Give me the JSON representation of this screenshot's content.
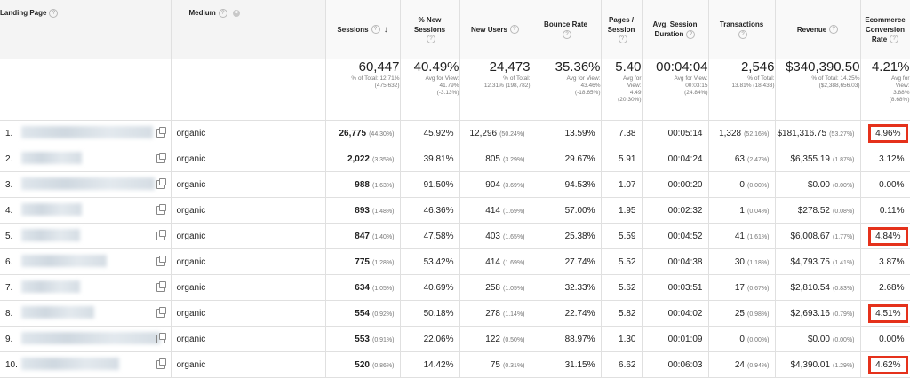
{
  "headers": {
    "landing_page": "Landing Page",
    "medium": "Medium",
    "sessions": "Sessions",
    "new_sessions_line1": "% New",
    "new_sessions_line2": "Sessions",
    "new_users": "New Users",
    "bounce_rate": "Bounce Rate",
    "pages_session_line1": "Pages /",
    "pages_session_line2": "Session",
    "avg_duration_line1": "Avg. Session",
    "avg_duration_line2": "Duration",
    "transactions": "Transactions",
    "revenue": "Revenue",
    "conv_line1": "Ecommerce",
    "conv_line2": "Conversion",
    "conv_line3": "Rate",
    "help_glyph": "?",
    "remove_glyph": "×",
    "sort_glyph": "↓"
  },
  "summary": {
    "sessions": {
      "big": "60,447",
      "sub1": "% of Total: 12.71%",
      "sub2": "(475,632)"
    },
    "new_sessions": {
      "big": "40.49%",
      "sub1": "Avg for View:",
      "sub2": "41.79%",
      "sub3": "(-3.13%)"
    },
    "new_users": {
      "big": "24,473",
      "sub1": "% of Total:",
      "sub2": "12.31% (198,782)"
    },
    "bounce_rate": {
      "big": "35.36%",
      "sub1": "Avg for View:",
      "sub2": "43.46%",
      "sub3": "(-18.65%)"
    },
    "pages_session": {
      "big": "5.40",
      "sub1": "Avg for",
      "sub2": "View:",
      "sub3": "4.49",
      "sub4": "(20.30%)"
    },
    "avg_duration": {
      "big": "00:04:04",
      "sub1": "Avg for View:",
      "sub2": "00:03:15",
      "sub3": "(24.84%)"
    },
    "transactions": {
      "big": "2,546",
      "sub1": "% of Total:",
      "sub2": "13.81% (18,433)"
    },
    "revenue": {
      "big": "$340,390.50",
      "sub1": "% of Total: 14.25%",
      "sub2": "($2,388,656.03)"
    },
    "conv_rate": {
      "big": "4.21%",
      "sub1": "Avg for",
      "sub2": "View:",
      "sub3": "3.88%",
      "sub4": "(8.68%)"
    }
  },
  "rows": [
    {
      "idx": "1.",
      "medium": "organic",
      "sessions": "26,775",
      "sessions_pct": "(44.30%)",
      "new_sessions": "45.92%",
      "new_users": "12,296",
      "new_users_pct": "(50.24%)",
      "bounce": "13.59%",
      "pages": "7.38",
      "duration": "00:05:14",
      "transactions": "1,328",
      "transactions_pct": "(52.16%)",
      "revenue": "$181,316.75",
      "revenue_pct": "(53.27%)",
      "conv": "4.96%"
    },
    {
      "idx": "2.",
      "medium": "organic",
      "sessions": "2,022",
      "sessions_pct": "(3.35%)",
      "new_sessions": "39.81%",
      "new_users": "805",
      "new_users_pct": "(3.29%)",
      "bounce": "29.67%",
      "pages": "5.91",
      "duration": "00:04:24",
      "transactions": "63",
      "transactions_pct": "(2.47%)",
      "revenue": "$6,355.19",
      "revenue_pct": "(1.87%)",
      "conv": "3.12%"
    },
    {
      "idx": "3.",
      "medium": "organic",
      "sessions": "988",
      "sessions_pct": "(1.63%)",
      "new_sessions": "91.50%",
      "new_users": "904",
      "new_users_pct": "(3.69%)",
      "bounce": "94.53%",
      "pages": "1.07",
      "duration": "00:00:20",
      "transactions": "0",
      "transactions_pct": "(0.00%)",
      "revenue": "$0.00",
      "revenue_pct": "(0.00%)",
      "conv": "0.00%"
    },
    {
      "idx": "4.",
      "medium": "organic",
      "sessions": "893",
      "sessions_pct": "(1.48%)",
      "new_sessions": "46.36%",
      "new_users": "414",
      "new_users_pct": "(1.69%)",
      "bounce": "57.00%",
      "pages": "1.95",
      "duration": "00:02:32",
      "transactions": "1",
      "transactions_pct": "(0.04%)",
      "revenue": "$278.52",
      "revenue_pct": "(0.08%)",
      "conv": "0.11%"
    },
    {
      "idx": "5.",
      "medium": "organic",
      "sessions": "847",
      "sessions_pct": "(1.40%)",
      "new_sessions": "47.58%",
      "new_users": "403",
      "new_users_pct": "(1.65%)",
      "bounce": "25.38%",
      "pages": "5.59",
      "duration": "00:04:52",
      "transactions": "41",
      "transactions_pct": "(1.61%)",
      "revenue": "$6,008.67",
      "revenue_pct": "(1.77%)",
      "conv": "4.84%"
    },
    {
      "idx": "6.",
      "medium": "organic",
      "sessions": "775",
      "sessions_pct": "(1.28%)",
      "new_sessions": "53.42%",
      "new_users": "414",
      "new_users_pct": "(1.69%)",
      "bounce": "27.74%",
      "pages": "5.52",
      "duration": "00:04:38",
      "transactions": "30",
      "transactions_pct": "(1.18%)",
      "revenue": "$4,793.75",
      "revenue_pct": "(1.41%)",
      "conv": "3.87%"
    },
    {
      "idx": "7.",
      "medium": "organic",
      "sessions": "634",
      "sessions_pct": "(1.05%)",
      "new_sessions": "40.69%",
      "new_users": "258",
      "new_users_pct": "(1.05%)",
      "bounce": "32.33%",
      "pages": "5.62",
      "duration": "00:03:51",
      "transactions": "17",
      "transactions_pct": "(0.67%)",
      "revenue": "$2,810.54",
      "revenue_pct": "(0.83%)",
      "conv": "2.68%"
    },
    {
      "idx": "8.",
      "medium": "organic",
      "sessions": "554",
      "sessions_pct": "(0.92%)",
      "new_sessions": "50.18%",
      "new_users": "278",
      "new_users_pct": "(1.14%)",
      "bounce": "22.74%",
      "pages": "5.82",
      "duration": "00:04:02",
      "transactions": "25",
      "transactions_pct": "(0.98%)",
      "revenue": "$2,693.16",
      "revenue_pct": "(0.79%)",
      "conv": "4.51%"
    },
    {
      "idx": "9.",
      "medium": "organic",
      "sessions": "553",
      "sessions_pct": "(0.91%)",
      "new_sessions": "22.06%",
      "new_users": "122",
      "new_users_pct": "(0.50%)",
      "bounce": "88.97%",
      "pages": "1.30",
      "duration": "00:01:09",
      "transactions": "0",
      "transactions_pct": "(0.00%)",
      "revenue": "$0.00",
      "revenue_pct": "(0.00%)",
      "conv": "0.00%"
    },
    {
      "idx": "10.",
      "medium": "organic",
      "sessions": "520",
      "sessions_pct": "(0.86%)",
      "new_sessions": "14.42%",
      "new_users": "75",
      "new_users_pct": "(0.31%)",
      "bounce": "31.15%",
      "pages": "6.62",
      "duration": "00:06:03",
      "transactions": "24",
      "transactions_pct": "(0.94%)",
      "revenue": "$4,390.01",
      "revenue_pct": "(1.29%)",
      "conv": "4.62%"
    }
  ],
  "highlight_color": "#e5311b"
}
